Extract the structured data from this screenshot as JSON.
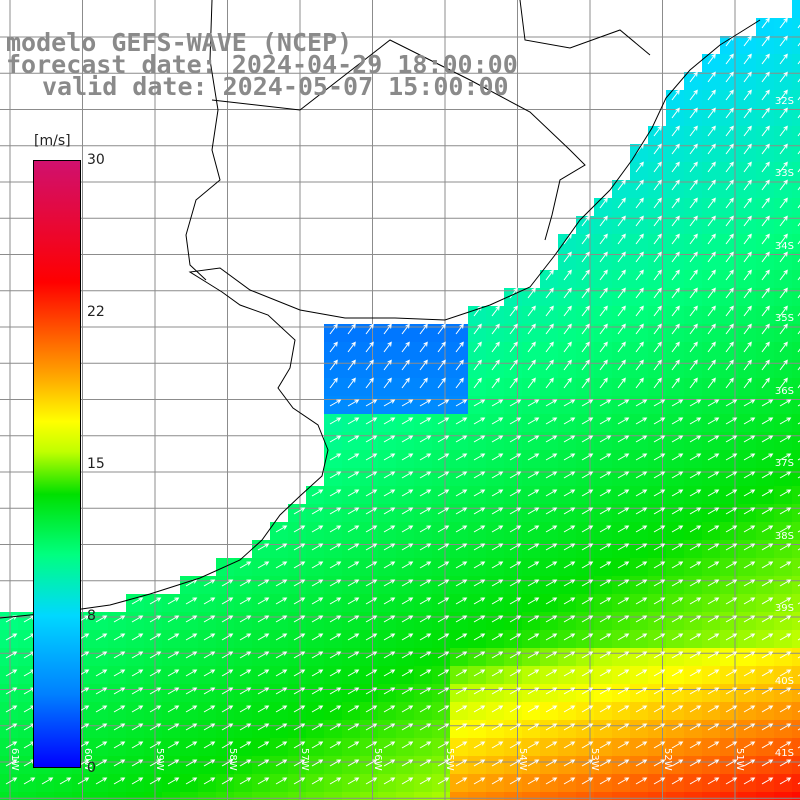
{
  "title": {
    "line1": "modelo GEFS-WAVE (NCEP)",
    "line2": "forecast date: 2024-04-29 18:00:00",
    "line3": "valid date: 2024-05-07 15:00:00"
  },
  "legend": {
    "unit": "[m/s]",
    "ticks": [
      "30",
      "22",
      "15",
      "8",
      "0"
    ],
    "colors": [
      "#0000ff",
      "#00d8ff",
      "#00e000",
      "#ffff00",
      "#ff0000",
      "#d0106e"
    ]
  },
  "grid": {
    "lat_labels": [
      "32S",
      "33S",
      "34S",
      "35S",
      "36S",
      "37S",
      "38S",
      "39S",
      "40S",
      "41S"
    ],
    "lon_labels": [
      "61W",
      "60W",
      "59W",
      "58W",
      "57W",
      "56W",
      "55W",
      "54W",
      "53W",
      "52W",
      "51W"
    ]
  },
  "colors": {
    "land": "#ffffff",
    "coast": "#000000",
    "grid": "#8c8c8c",
    "arrows": "#ffffff"
  }
}
